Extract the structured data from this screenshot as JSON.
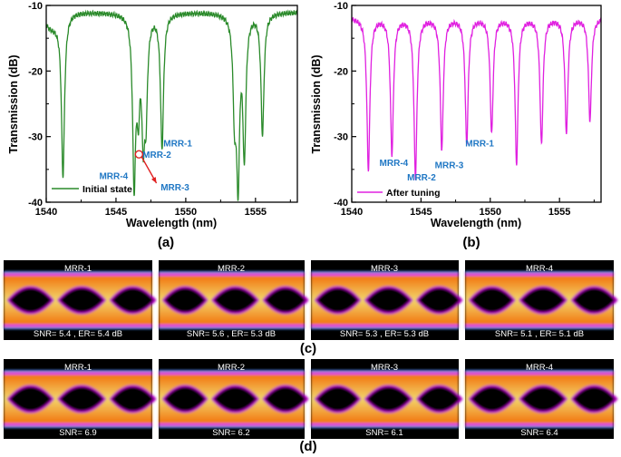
{
  "chart_data": [
    {
      "type": "line",
      "panel_label": "(a)",
      "xlabel": "Wavelength (nm)",
      "ylabel": "Transmission (dB)",
      "xlim": [
        1540,
        1558
      ],
      "ylim": [
        -40,
        -10
      ],
      "xticks": [
        1540,
        1545,
        1550,
        1555
      ],
      "yticks": [
        -10,
        -20,
        -30,
        -40
      ],
      "color": "#2a8a2a",
      "legend": "Initial state",
      "baseline": -11,
      "resonances": [
        {
          "x": 1541.2,
          "depth": -35.3
        },
        {
          "x": 1546.3,
          "depth": -36.0
        },
        {
          "x": 1546.6,
          "depth": -23.0
        },
        {
          "x": 1546.95,
          "depth": -27.0
        },
        {
          "x": 1547.15,
          "depth": -24.0
        },
        {
          "x": 1548.3,
          "depth": -31.5
        },
        {
          "x": 1553.5,
          "depth": -25.0
        },
        {
          "x": 1553.75,
          "depth": -35.0
        },
        {
          "x": 1554.2,
          "depth": -32.0
        },
        {
          "x": 1555.5,
          "depth": -29.5
        }
      ],
      "annotations": [
        {
          "text": "MRR-1",
          "x": 1548.4,
          "y": -31.5
        },
        {
          "text": "MRR-2",
          "x": 1546.9,
          "y": -33.2
        },
        {
          "text": "MRR-3",
          "x": 1548.2,
          "y": -38.2
        },
        {
          "text": "MRR-4",
          "x": 1543.8,
          "y": -36.5
        }
      ],
      "marker": {
        "x": 1546.65,
        "y": -32.7
      },
      "arrow_end": {
        "x": 1547.9,
        "y": -37.1
      }
    },
    {
      "type": "line",
      "panel_label": "(b)",
      "xlabel": "Wavelength (nm)",
      "ylabel": "Transmission (dB)",
      "xlim": [
        1540,
        1558
      ],
      "ylim": [
        -40,
        -10
      ],
      "xticks": [
        1540,
        1545,
        1550,
        1555
      ],
      "yticks": [
        -10,
        -20,
        -30,
        -40
      ],
      "color": "#e020e0",
      "legend": "After tuning",
      "baseline": -11.8,
      "resonances": [
        {
          "x": 1541.2,
          "depth": -35.0
        },
        {
          "x": 1542.9,
          "depth": -32.5
        },
        {
          "x": 1544.6,
          "depth": -36.0
        },
        {
          "x": 1546.5,
          "depth": -31.8
        },
        {
          "x": 1548.3,
          "depth": -31.0
        },
        {
          "x": 1550.1,
          "depth": -29.3
        },
        {
          "x": 1551.9,
          "depth": -34.0
        },
        {
          "x": 1553.7,
          "depth": -31.0
        },
        {
          "x": 1555.5,
          "depth": -29.3
        },
        {
          "x": 1557.2,
          "depth": -27.5
        }
      ],
      "annotations": [
        {
          "text": "MRR-1",
          "x": 1548.2,
          "y": -31.5
        },
        {
          "text": "MRR-2",
          "x": 1544.0,
          "y": -36.7
        },
        {
          "text": "MRR-3",
          "x": 1546.0,
          "y": -34.8
        },
        {
          "text": "MRR-4",
          "x": 1542.0,
          "y": -34.5
        }
      ]
    }
  ],
  "eye_rows": [
    {
      "label": "(c)",
      "eyes": [
        {
          "title": "MRR-1",
          "caption": "SNR= 5.4 , ER= 5.4 dB"
        },
        {
          "title": "MRR-2",
          "caption": "SNR= 5.6 , ER= 5.3 dB"
        },
        {
          "title": "MRR-3",
          "caption": "SNR= 5.3 , ER= 5.3 dB"
        },
        {
          "title": "MRR-4",
          "caption": "SNR= 5.1 , ER= 5.1 dB"
        }
      ]
    },
    {
      "label": "(d)",
      "eyes": [
        {
          "title": "MRR-1",
          "caption": "SNR= 6.9"
        },
        {
          "title": "MRR-2",
          "caption": "SNR= 6.2"
        },
        {
          "title": "MRR-3",
          "caption": "SNR= 6.1"
        },
        {
          "title": "MRR-4",
          "caption": "SNR= 6.4"
        }
      ]
    }
  ]
}
